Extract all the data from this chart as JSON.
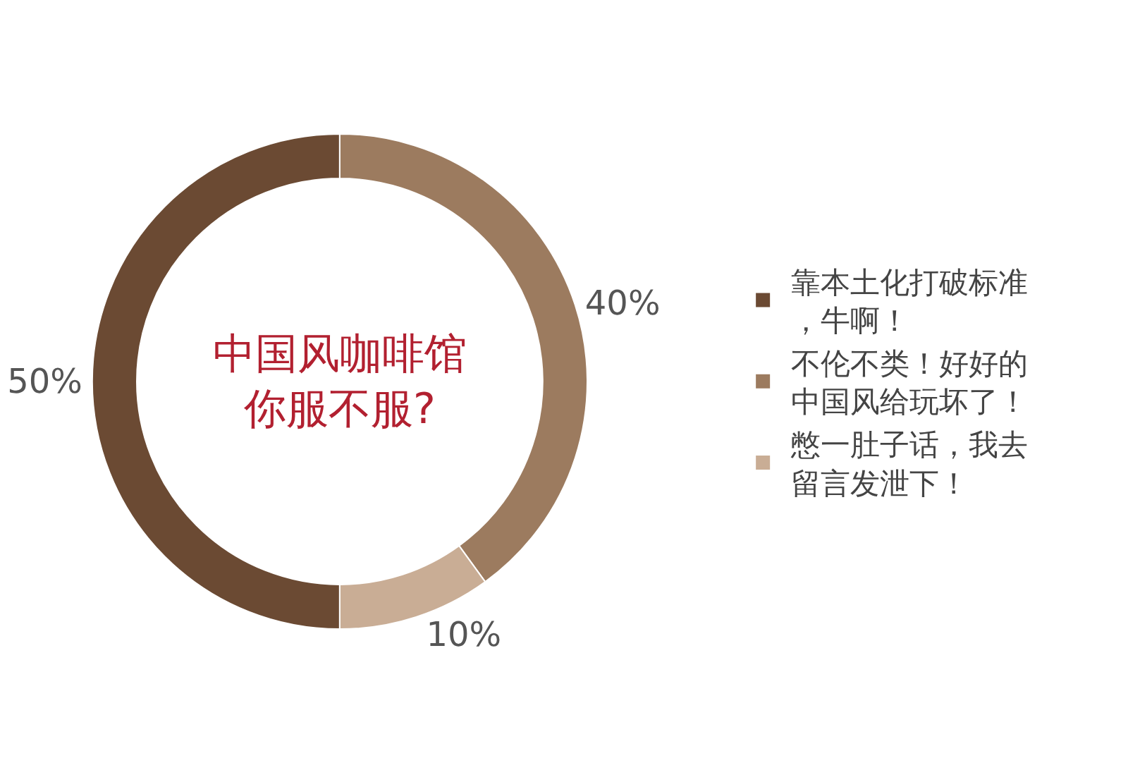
{
  "chart_data": {
    "type": "donut",
    "title": "中国风咖啡馆你服不服?",
    "categories": [
      "靠本土化打破标准，牛啊！",
      "不伦不类！好好的中国风给玩坏了！",
      "憋一肚子话，我去留言发泄下！"
    ],
    "values": [
      50,
      40,
      10
    ],
    "colors": [
      "#6b4a33",
      "#9c7b5f",
      "#c9ad95"
    ],
    "value_labels": [
      "50%",
      "40%",
      "10%"
    ],
    "legend": "right"
  }
}
